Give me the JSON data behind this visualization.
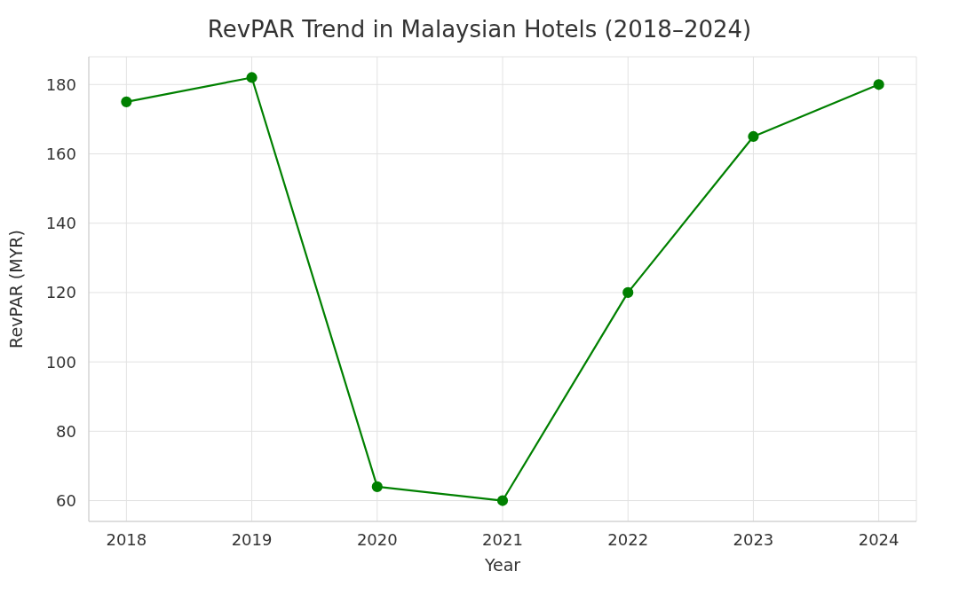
{
  "chart_data": {
    "type": "line",
    "title": "RevPAR Trend in Malaysian Hotels (2018–2024)",
    "xlabel": "Year",
    "ylabel": "RevPAR (MYR)",
    "x": [
      2018,
      2019,
      2020,
      2021,
      2022,
      2023,
      2024
    ],
    "series": [
      {
        "color": "#008000",
        "values": [
          175,
          182,
          64,
          60,
          120,
          165,
          180
        ]
      }
    ],
    "xlim": [
      2017.7,
      2024.3
    ],
    "xticks": [
      2018,
      2019,
      2020,
      2021,
      2022,
      2023,
      2024
    ],
    "ylim": [
      54,
      188
    ],
    "yticks": [
      60,
      80,
      100,
      120,
      140,
      160,
      180
    ],
    "grid": true,
    "marker": "circle",
    "line_style": "solid"
  }
}
